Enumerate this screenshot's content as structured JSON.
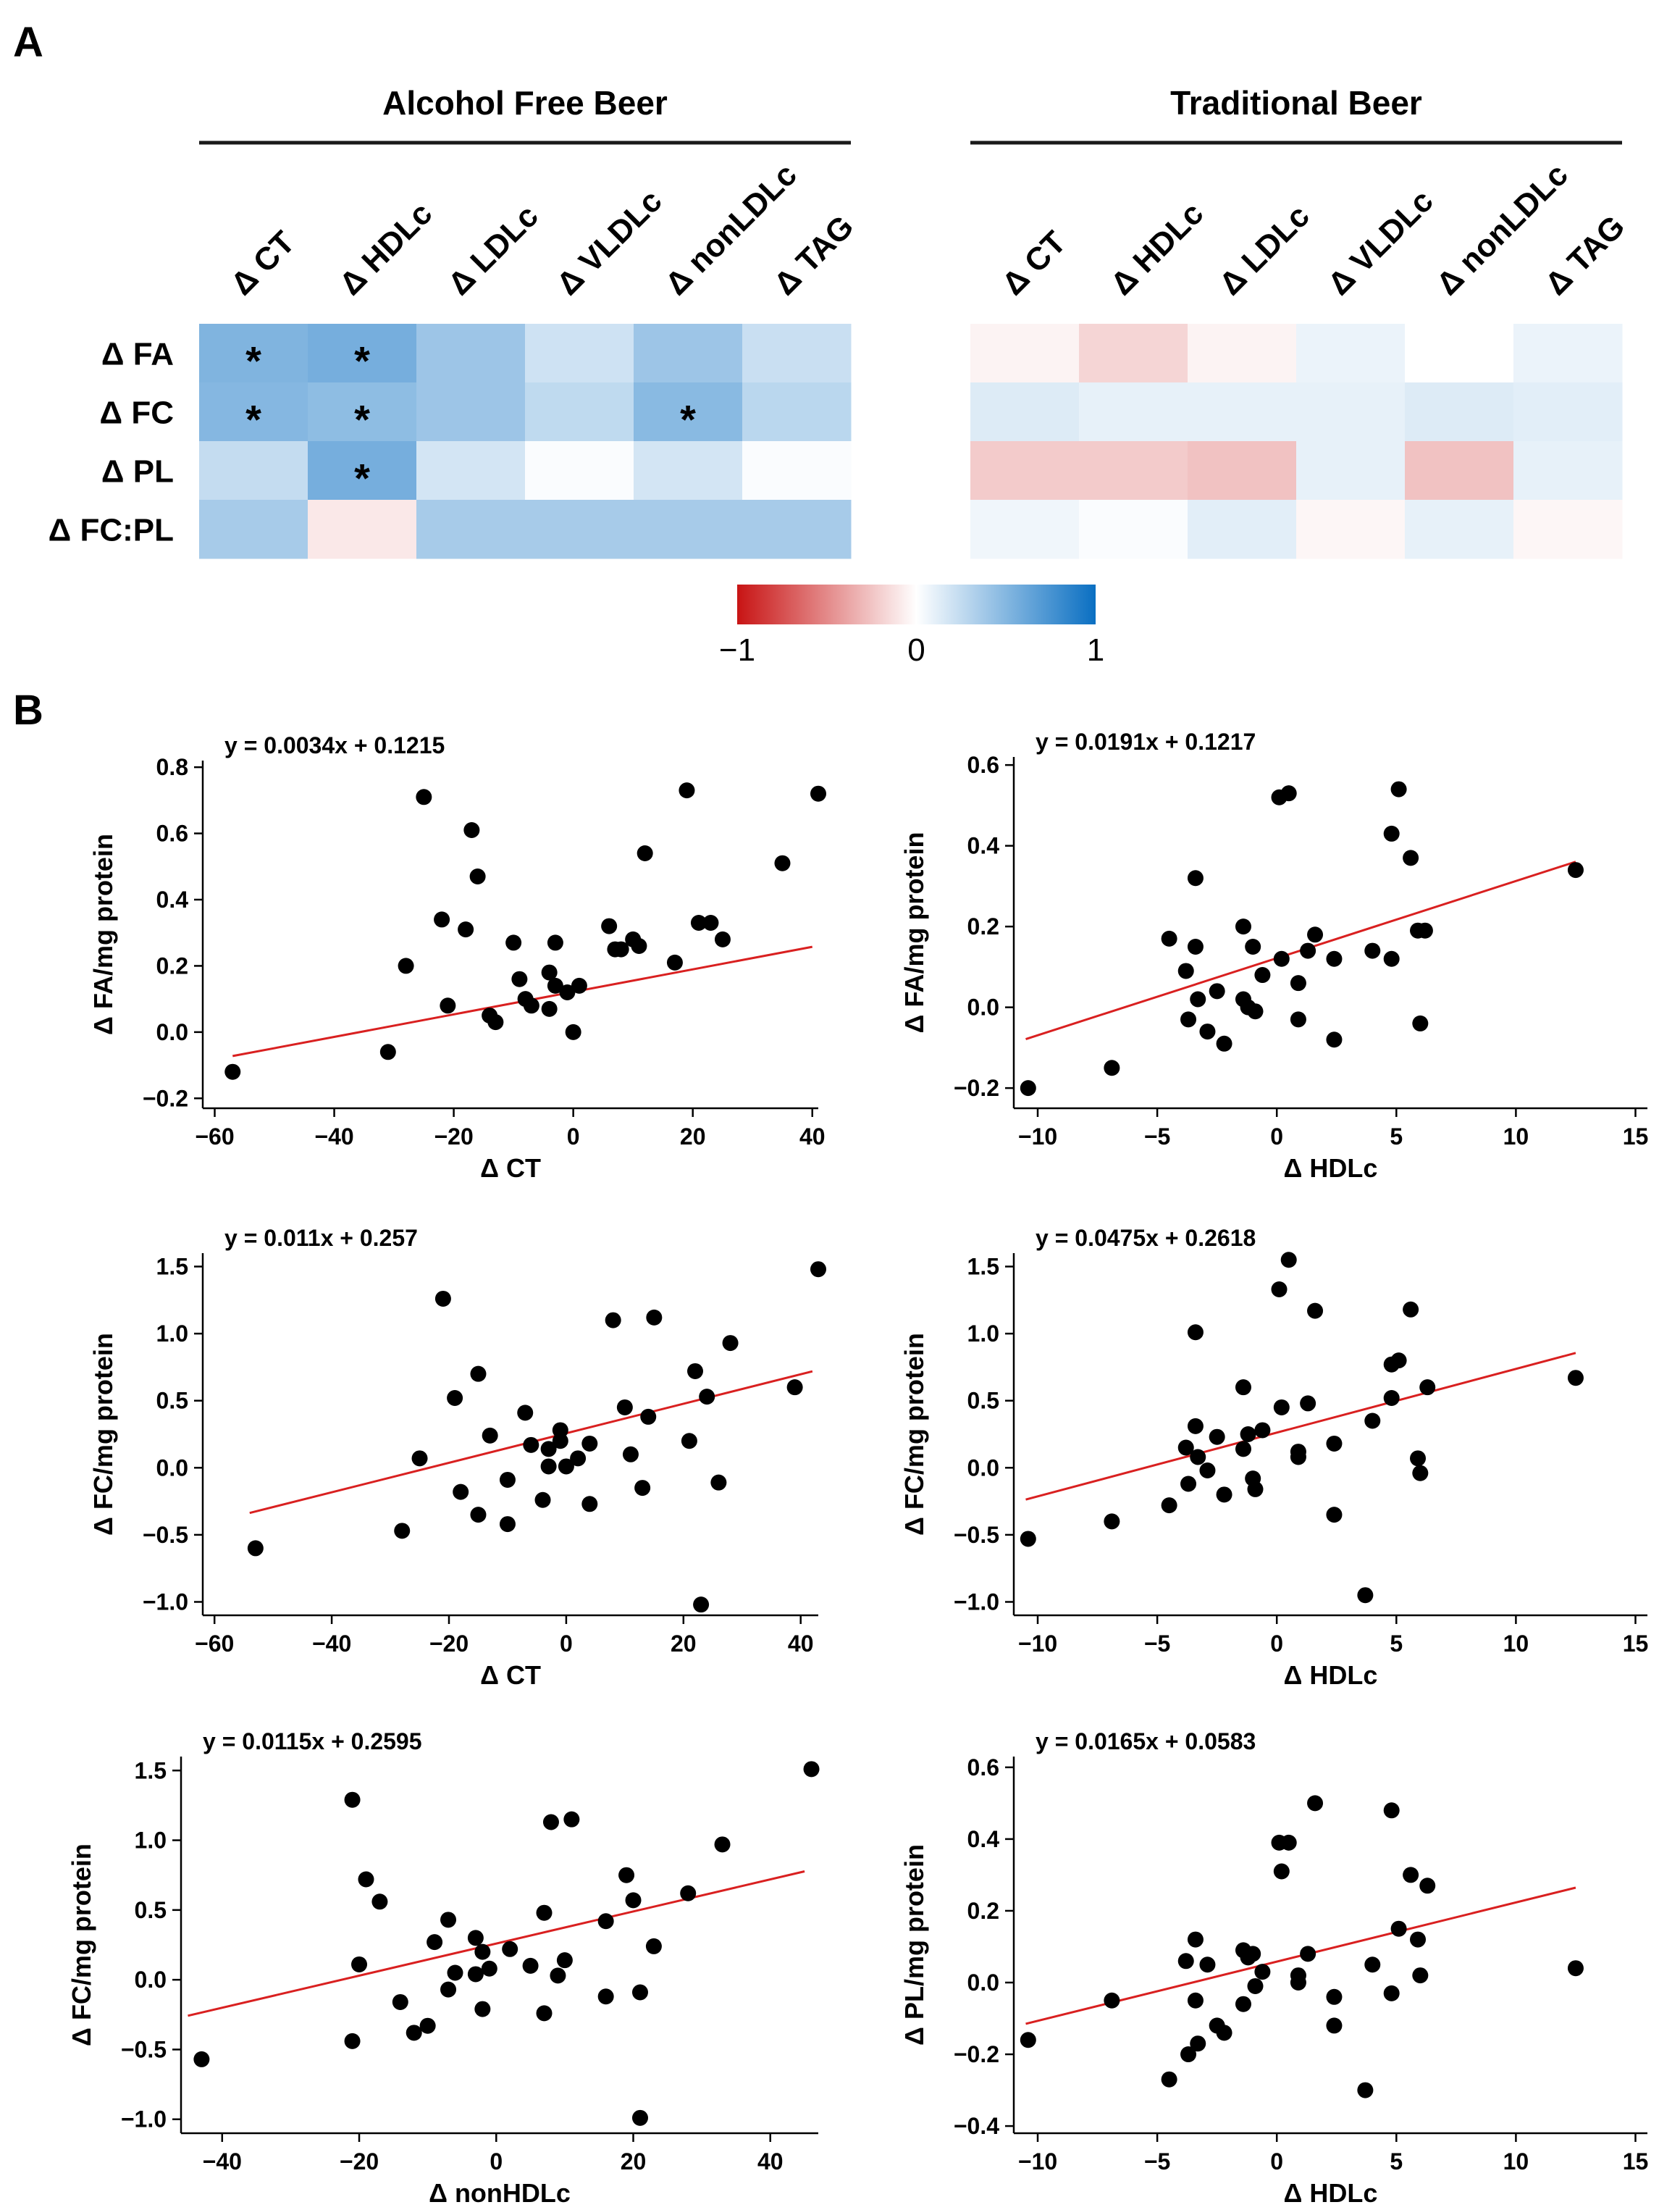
{
  "panels": {
    "a": "A",
    "b": "B"
  },
  "colors": {
    "negative": "#c81414",
    "zero": "#ffffff",
    "positive": "#0a6fc2",
    "regression": "#d92020",
    "point": "#000000"
  },
  "heatmap": {
    "type": "heatmap",
    "groups": [
      {
        "title": "Alcohol Free Beer",
        "columns": [
          "Δ CT",
          "Δ HDLc",
          "Δ LDLc",
          "Δ VLDLc",
          "Δ nonLDLc",
          "Δ TAG"
        ],
        "rows": [
          "Δ FA",
          "Δ FC",
          "Δ PL",
          "Δ FC:PL"
        ],
        "values": [
          [
            0.52,
            0.56,
            0.4,
            0.2,
            0.4,
            0.22
          ],
          [
            0.5,
            0.46,
            0.4,
            0.26,
            0.48,
            0.28
          ],
          [
            0.24,
            0.56,
            0.18,
            0.02,
            0.18,
            0.02
          ],
          [
            0.36,
            -0.1,
            0.36,
            0.36,
            0.36,
            0.36
          ]
        ],
        "significant": [
          [
            0,
            0
          ],
          [
            0,
            1
          ],
          [
            1,
            0
          ],
          [
            1,
            1
          ],
          [
            1,
            4
          ],
          [
            2,
            1
          ]
        ],
        "significance_mark": "*"
      },
      {
        "title": "Traditional Beer",
        "columns": [
          "Δ CT",
          "Δ HDLc",
          "Δ LDLc",
          "Δ VLDLc",
          "Δ nonLDLc",
          "Δ TAG"
        ],
        "rows": [
          "Δ FA",
          "Δ FC",
          "Δ PL",
          "Δ FC:PL"
        ],
        "values": [
          [
            -0.05,
            -0.18,
            -0.05,
            0.08,
            0.0,
            0.08
          ],
          [
            0.14,
            0.1,
            0.1,
            0.1,
            0.14,
            0.12
          ],
          [
            -0.22,
            -0.22,
            -0.26,
            0.1,
            -0.26,
            0.1
          ],
          [
            0.06,
            0.02,
            0.12,
            -0.04,
            0.1,
            -0.04
          ]
        ]
      }
    ],
    "colorbar": {
      "min": -1,
      "max": 1,
      "ticks": [
        "−1",
        "0",
        "1"
      ]
    }
  },
  "chart_data": [
    {
      "type": "scatter",
      "equation": "y = 0.0034x + 0.1215",
      "xlabel": "Δ CT",
      "ylabel": "Δ FA/mg protein",
      "xlim": [
        -62,
        41
      ],
      "ylim": [
        -0.23,
        0.82
      ],
      "xticks": [
        -60,
        -40,
        -20,
        0,
        20,
        40
      ],
      "yticks": [
        -0.2,
        0.0,
        0.2,
        0.4,
        0.6,
        0.8
      ],
      "ytick_labels": [
        "−0.2",
        "0.0",
        "0.2",
        "0.4",
        "0.6",
        "0.8"
      ],
      "fit": {
        "slope": 0.0034,
        "intercept": 0.1215,
        "x_range": [
          -57,
          40
        ]
      },
      "points": [
        [
          -57,
          -0.12
        ],
        [
          -31,
          -0.06
        ],
        [
          -28,
          0.2
        ],
        [
          -25,
          0.71
        ],
        [
          -22,
          0.34
        ],
        [
          -21,
          0.08
        ],
        [
          -18,
          0.31
        ],
        [
          -17,
          0.61
        ],
        [
          -16,
          0.47
        ],
        [
          -14,
          0.05
        ],
        [
          -13,
          0.03
        ],
        [
          -10,
          0.27
        ],
        [
          -9,
          0.16
        ],
        [
          -8,
          0.1
        ],
        [
          -7,
          0.08
        ],
        [
          -4,
          0.18
        ],
        [
          -4,
          0.07
        ],
        [
          -3,
          0.27
        ],
        [
          -3,
          0.14
        ],
        [
          -1,
          0.12
        ],
        [
          0,
          0.0
        ],
        [
          1,
          0.14
        ],
        [
          6,
          0.32
        ],
        [
          7,
          0.25
        ],
        [
          8,
          0.25
        ],
        [
          10,
          0.28
        ],
        [
          11,
          0.26
        ],
        [
          12,
          0.54
        ],
        [
          17,
          0.21
        ],
        [
          19,
          0.73
        ],
        [
          21,
          0.33
        ],
        [
          23,
          0.33
        ],
        [
          25,
          0.28
        ],
        [
          35,
          0.51
        ],
        [
          41,
          0.72
        ]
      ]
    },
    {
      "type": "scatter",
      "equation": "y = 0.0191x + 0.1217",
      "xlabel": "Δ HDLc",
      "ylabel": "Δ FA/mg protein",
      "xlim": [
        -11,
        15.5
      ],
      "ylim": [
        -0.25,
        0.62
      ],
      "xticks": [
        -10,
        -5,
        0,
        5,
        10,
        15
      ],
      "yticks": [
        -0.2,
        0.0,
        0.2,
        0.4,
        0.6
      ],
      "ytick_labels": [
        "−0.2",
        "0.0",
        "0.2",
        "0.4",
        "0.6"
      ],
      "fit": {
        "slope": 0.0191,
        "intercept": 0.1217,
        "x_range": [
          -10.5,
          12.5
        ]
      },
      "points": [
        [
          -10.4,
          -0.2
        ],
        [
          -6.9,
          -0.15
        ],
        [
          -4.5,
          0.17
        ],
        [
          -3.8,
          0.09
        ],
        [
          -3.7,
          -0.03
        ],
        [
          -3.4,
          0.32
        ],
        [
          -3.4,
          0.15
        ],
        [
          -3.3,
          0.02
        ],
        [
          -2.9,
          -0.06
        ],
        [
          -2.5,
          0.04
        ],
        [
          -2.2,
          -0.09
        ],
        [
          -1.4,
          0.2
        ],
        [
          -1.4,
          0.02
        ],
        [
          -1.2,
          0.0
        ],
        [
          -1.0,
          0.15
        ],
        [
          -0.9,
          -0.01
        ],
        [
          -0.6,
          0.08
        ],
        [
          0.1,
          0.52
        ],
        [
          0.2,
          0.12
        ],
        [
          0.5,
          0.53
        ],
        [
          0.9,
          0.06
        ],
        [
          0.9,
          -0.03
        ],
        [
          1.3,
          0.14
        ],
        [
          1.6,
          0.18
        ],
        [
          2.4,
          0.12
        ],
        [
          2.4,
          -0.08
        ],
        [
          4.0,
          0.14
        ],
        [
          4.8,
          0.43
        ],
        [
          4.8,
          0.12
        ],
        [
          5.1,
          0.54
        ],
        [
          5.6,
          0.37
        ],
        [
          5.9,
          0.19
        ],
        [
          6.0,
          -0.04
        ],
        [
          6.2,
          0.19
        ],
        [
          12.5,
          0.34
        ]
      ]
    },
    {
      "type": "scatter",
      "equation": "y = 0.011x + 0.257",
      "xlabel": "Δ CT",
      "ylabel": "Δ FC/mg protein",
      "xlim": [
        -62,
        43
      ],
      "ylim": [
        -1.1,
        1.6
      ],
      "xticks": [
        -60,
        -40,
        -20,
        0,
        20,
        40
      ],
      "yticks": [
        -1.0,
        -0.5,
        0.0,
        0.5,
        1.0,
        1.5
      ],
      "ytick_labels": [
        "−1.0",
        "−0.5",
        "0.0",
        "0.5",
        "1.0",
        "1.5"
      ],
      "fit": {
        "slope": 0.011,
        "intercept": 0.257,
        "x_range": [
          -54,
          42
        ]
      },
      "points": [
        [
          -53,
          -0.6
        ],
        [
          -28,
          -0.47
        ],
        [
          -25,
          0.07
        ],
        [
          -21,
          1.26
        ],
        [
          -19,
          0.52
        ],
        [
          -18,
          -0.18
        ],
        [
          -15,
          0.7
        ],
        [
          -15,
          -0.35
        ],
        [
          -13,
          0.24
        ],
        [
          -10,
          -0.09
        ],
        [
          -10,
          -0.42
        ],
        [
          -7,
          0.41
        ],
        [
          -6,
          0.17
        ],
        [
          -4,
          -0.24
        ],
        [
          -3,
          0.01
        ],
        [
          -3,
          0.14
        ],
        [
          -1,
          0.28
        ],
        [
          -1,
          0.2
        ],
        [
          0,
          0.01
        ],
        [
          2,
          0.07
        ],
        [
          4,
          0.18
        ],
        [
          4,
          -0.27
        ],
        [
          8,
          1.1
        ],
        [
          10,
          0.45
        ],
        [
          11,
          0.1
        ],
        [
          13,
          -0.15
        ],
        [
          14,
          0.38
        ],
        [
          15,
          1.12
        ],
        [
          21,
          0.2
        ],
        [
          22,
          0.72
        ],
        [
          23,
          -1.02
        ],
        [
          24,
          0.53
        ],
        [
          26,
          -0.11
        ],
        [
          28,
          0.93
        ],
        [
          39,
          0.6
        ],
        [
          43,
          1.48
        ]
      ]
    },
    {
      "type": "scatter",
      "equation": "y = 0.0475x + 0.2618",
      "xlabel": "Δ HDLc",
      "ylabel": "Δ FC/mg protein",
      "xlim": [
        -11,
        15.5
      ],
      "ylim": [
        -1.1,
        1.6
      ],
      "xticks": [
        -10,
        -5,
        0,
        5,
        10,
        15
      ],
      "yticks": [
        -1.0,
        -0.5,
        0.0,
        0.5,
        1.0,
        1.5
      ],
      "ytick_labels": [
        "−1.0",
        "−0.5",
        "0.0",
        "0.5",
        "1.0",
        "1.5"
      ],
      "fit": {
        "slope": 0.0475,
        "intercept": 0.2618,
        "x_range": [
          -10.5,
          12.5
        ]
      },
      "points": [
        [
          -10.4,
          -0.53
        ],
        [
          -6.9,
          -0.4
        ],
        [
          -4.5,
          -0.28
        ],
        [
          -3.8,
          0.15
        ],
        [
          -3.7,
          -0.12
        ],
        [
          -3.4,
          1.01
        ],
        [
          -3.4,
          0.31
        ],
        [
          -3.3,
          0.08
        ],
        [
          -2.9,
          -0.02
        ],
        [
          -2.5,
          0.23
        ],
        [
          -2.2,
          -0.2
        ],
        [
          -1.4,
          0.6
        ],
        [
          -1.4,
          0.14
        ],
        [
          -1.2,
          0.25
        ],
        [
          -1.0,
          -0.08
        ],
        [
          -0.9,
          -0.16
        ],
        [
          -0.6,
          0.28
        ],
        [
          0.1,
          1.33
        ],
        [
          0.2,
          0.45
        ],
        [
          0.5,
          1.55
        ],
        [
          0.9,
          0.12
        ],
        [
          0.9,
          0.08
        ],
        [
          1.3,
          0.48
        ],
        [
          1.6,
          1.17
        ],
        [
          2.4,
          0.18
        ],
        [
          2.4,
          -0.35
        ],
        [
          3.7,
          -0.95
        ],
        [
          4.0,
          0.35
        ],
        [
          4.8,
          0.77
        ],
        [
          4.8,
          0.52
        ],
        [
          5.1,
          0.8
        ],
        [
          5.6,
          1.18
        ],
        [
          5.9,
          0.07
        ],
        [
          6.0,
          -0.04
        ],
        [
          6.3,
          0.6
        ],
        [
          12.5,
          0.67
        ]
      ]
    },
    {
      "type": "scatter",
      "equation": "y = 0.0115x + 0.2595",
      "xlabel": "Δ nonHDLc",
      "ylabel": "Δ FC/mg protein",
      "xlim": [
        -46,
        47
      ],
      "ylim": [
        -1.1,
        1.6
      ],
      "xticks": [
        -40,
        -20,
        0,
        20,
        40
      ],
      "yticks": [
        -1.0,
        -0.5,
        0.0,
        0.5,
        1.0,
        1.5
      ],
      "ytick_labels": [
        "−1.0",
        "−0.5",
        "0.0",
        "0.5",
        "1.0",
        "1.5"
      ],
      "fit": {
        "slope": 0.0115,
        "intercept": 0.2595,
        "x_range": [
          -45,
          45
        ]
      },
      "points": [
        [
          -43,
          -0.57
        ],
        [
          -21,
          1.29
        ],
        [
          -21,
          -0.44
        ],
        [
          -20,
          0.11
        ],
        [
          -19,
          0.72
        ],
        [
          -17,
          0.56
        ],
        [
          -14,
          -0.16
        ],
        [
          -12,
          -0.38
        ],
        [
          -10,
          -0.33
        ],
        [
          -9,
          0.27
        ],
        [
          -7,
          0.43
        ],
        [
          -7,
          -0.07
        ],
        [
          -6,
          0.05
        ],
        [
          -3,
          0.3
        ],
        [
          -3,
          0.04
        ],
        [
          -2,
          -0.21
        ],
        [
          -2,
          0.2
        ],
        [
          -1,
          0.08
        ],
        [
          2,
          0.22
        ],
        [
          5,
          0.1
        ],
        [
          7,
          0.48
        ],
        [
          7,
          -0.24
        ],
        [
          8,
          1.13
        ],
        [
          9,
          0.03
        ],
        [
          10,
          0.14
        ],
        [
          11,
          1.15
        ],
        [
          16,
          0.42
        ],
        [
          16,
          -0.12
        ],
        [
          19,
          0.75
        ],
        [
          20,
          0.57
        ],
        [
          21,
          -0.99
        ],
        [
          21,
          -0.09
        ],
        [
          23,
          0.24
        ],
        [
          28,
          0.62
        ],
        [
          33,
          0.97
        ],
        [
          46,
          1.51
        ]
      ]
    },
    {
      "type": "scatter",
      "equation": "y = 0.0165x + 0.0583",
      "xlabel": "Δ HDLc",
      "ylabel": "Δ PL/mg protein",
      "xlim": [
        -11,
        15.5
      ],
      "ylim": [
        -0.42,
        0.63
      ],
      "xticks": [
        -10,
        -5,
        0,
        5,
        10,
        15
      ],
      "yticks": [
        -0.4,
        -0.2,
        0.0,
        0.2,
        0.4,
        0.6
      ],
      "ytick_labels": [
        "−0.4",
        "−0.2",
        "0.0",
        "0.2",
        "0.4",
        "0.6"
      ],
      "fit": {
        "slope": 0.0165,
        "intercept": 0.0583,
        "x_range": [
          -10.5,
          12.5
        ]
      },
      "points": [
        [
          -10.4,
          -0.16
        ],
        [
          -6.9,
          -0.05
        ],
        [
          -4.5,
          -0.27
        ],
        [
          -3.8,
          0.06
        ],
        [
          -3.7,
          -0.2
        ],
        [
          -3.4,
          0.12
        ],
        [
          -3.4,
          -0.05
        ],
        [
          -3.3,
          -0.17
        ],
        [
          -2.9,
          0.05
        ],
        [
          -2.5,
          -0.12
        ],
        [
          -2.2,
          -0.14
        ],
        [
          -1.4,
          0.09
        ],
        [
          -1.4,
          -0.06
        ],
        [
          -1.2,
          0.07
        ],
        [
          -1.0,
          0.08
        ],
        [
          -0.9,
          -0.01
        ],
        [
          -0.6,
          0.03
        ],
        [
          0.1,
          0.39
        ],
        [
          0.2,
          0.31
        ],
        [
          0.5,
          0.39
        ],
        [
          0.9,
          0.02
        ],
        [
          0.9,
          0.0
        ],
        [
          1.3,
          0.08
        ],
        [
          1.6,
          0.5
        ],
        [
          2.4,
          -0.04
        ],
        [
          2.4,
          -0.12
        ],
        [
          3.7,
          -0.3
        ],
        [
          4.0,
          0.05
        ],
        [
          4.8,
          0.48
        ],
        [
          4.8,
          -0.03
        ],
        [
          5.1,
          0.15
        ],
        [
          5.6,
          0.3
        ],
        [
          5.9,
          0.12
        ],
        [
          6.0,
          0.02
        ],
        [
          6.3,
          0.27
        ],
        [
          12.5,
          0.04
        ]
      ]
    }
  ]
}
